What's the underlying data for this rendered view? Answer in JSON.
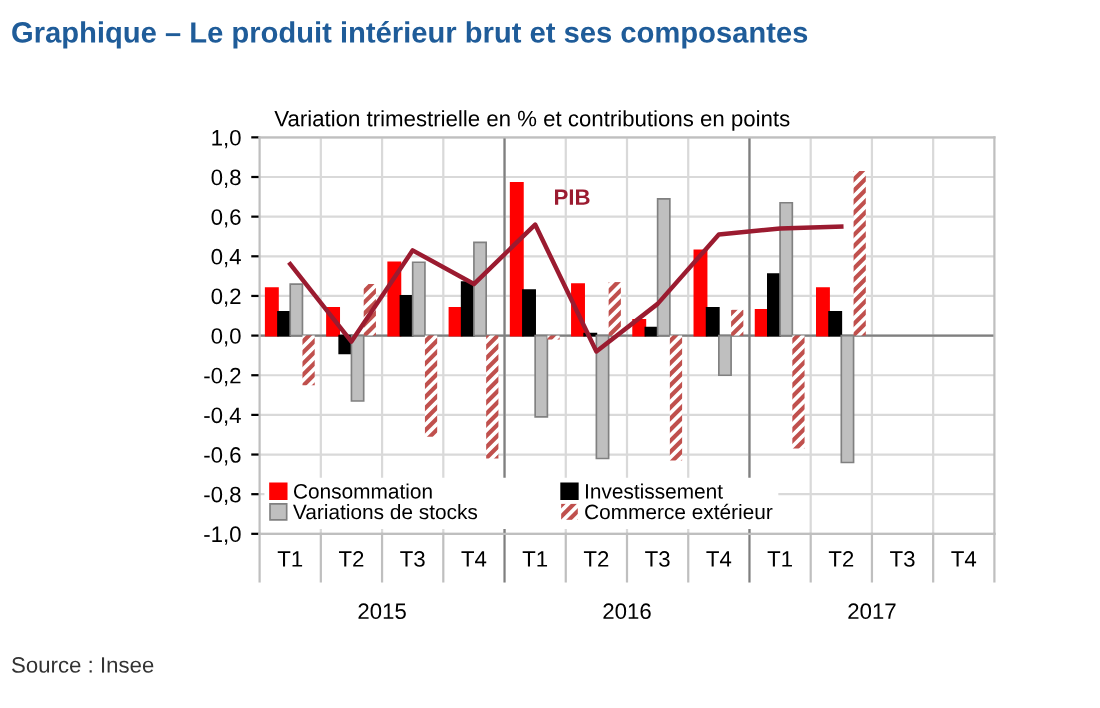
{
  "chart_data": {
    "type": "bar",
    "title": "Graphique – Le produit intérieur brut et ses composantes",
    "subtitle": "Variation trimestrielle en % et contributions en points",
    "categories": [
      "T1",
      "T2",
      "T3",
      "T4",
      "T1",
      "T2",
      "T3",
      "T4",
      "T1",
      "T2",
      "T3",
      "T4"
    ],
    "series": [
      {
        "name": "Consommation",
        "color": "#ff0000",
        "values": [
          0.24,
          0.14,
          0.37,
          0.14,
          0.77,
          0.26,
          0.08,
          0.43,
          0.13,
          0.24,
          null,
          null
        ]
      },
      {
        "name": "Investissement",
        "color": "#000000",
        "values": [
          0.12,
          -0.09,
          0.2,
          0.27,
          0.23,
          0.01,
          0.04,
          0.14,
          0.31,
          0.12,
          null,
          null
        ]
      },
      {
        "name": "Variations de stocks",
        "color": "#bfbfbf",
        "values": [
          0.26,
          -0.33,
          0.37,
          0.47,
          -0.41,
          -0.62,
          0.69,
          -0.2,
          0.67,
          -0.64,
          null,
          null
        ]
      },
      {
        "name": "Commerce extérieur",
        "color": "#c0504d",
        "values": [
          -0.25,
          0.26,
          -0.51,
          -0.62,
          -0.02,
          0.27,
          -0.63,
          0.13,
          -0.57,
          0.83,
          null,
          null
        ]
      },
      {
        "name": "PIB",
        "type": "line",
        "color": "#9b1b30",
        "values": [
          0.36,
          -0.03,
          0.43,
          0.26,
          0.56,
          -0.08,
          0.16,
          0.51,
          0.54,
          0.55,
          null,
          null
        ]
      }
    ],
    "ylim": [
      -1.0,
      1.0
    ],
    "yticks": [
      {
        "value": -1.0,
        "label": "-1,0"
      },
      {
        "value": -0.8,
        "label": "-0,8"
      },
      {
        "value": -0.6,
        "label": "-0,6"
      },
      {
        "value": -0.4,
        "label": "-0,4"
      },
      {
        "value": -0.2,
        "label": "-0,2"
      },
      {
        "value": 0.0,
        "label": "0,0"
      },
      {
        "value": 0.2,
        "label": "0,2"
      },
      {
        "value": 0.4,
        "label": "0,4"
      },
      {
        "value": 0.6,
        "label": "0,6"
      },
      {
        "value": 0.8,
        "label": "0,8"
      },
      {
        "value": 1.0,
        "label": "1,0"
      }
    ],
    "grid": true,
    "legend": "bottom left",
    "marker": "none",
    "line_style": "solid",
    "annotations": [
      "2015",
      "2016",
      "2017",
      "Source : Insee"
    ]
  }
}
